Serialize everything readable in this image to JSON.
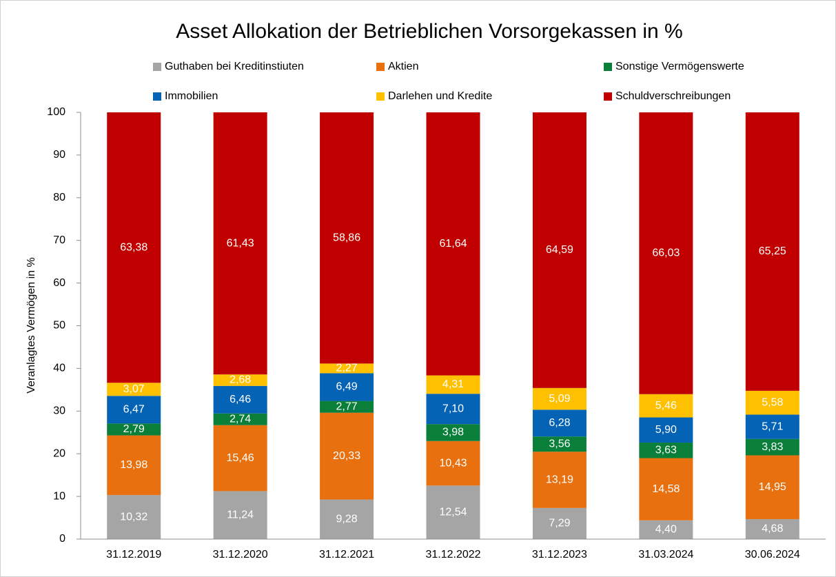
{
  "chart_data": {
    "type": "stacked_bar",
    "title": "Asset Allokation der Betrieblichen Vorsorgekassen in %",
    "y_label": "Veranlagtes Vermögen in %",
    "categories": [
      "31.12.2019",
      "31.12.2020",
      "31.12.2021",
      "31.12.2022",
      "31.12.2023",
      "31.03.2024",
      "30.06.2024"
    ],
    "ylim": [
      0,
      100
    ],
    "yticks": [
      0,
      10,
      20,
      30,
      40,
      50,
      60,
      70,
      80,
      90,
      100
    ],
    "series": [
      {
        "name": "Guthaben bei Kreditinstiuten",
        "color": "#a5a5a5",
        "values": [
          10.32,
          11.24,
          9.28,
          12.54,
          7.29,
          4.4,
          4.68
        ],
        "value_labels": [
          "10,32",
          "11,24",
          "9,28",
          "12,54",
          "7,29",
          "4,40",
          "4,68"
        ]
      },
      {
        "name": "Aktien",
        "color": "#e8700f",
        "values": [
          13.98,
          15.46,
          20.33,
          10.43,
          13.19,
          14.58,
          14.95
        ],
        "value_labels": [
          "13,98",
          "15,46",
          "20,33",
          "10,43",
          "13,19",
          "14,58",
          "14,95"
        ]
      },
      {
        "name": "Sonstige Vermögenswerte",
        "color": "#0a7f3a",
        "values": [
          2.79,
          2.74,
          2.77,
          3.98,
          3.56,
          3.63,
          3.83
        ],
        "value_labels": [
          "2,79",
          "2,74",
          "2,77",
          "3,98",
          "3,56",
          "3,63",
          "3,83"
        ]
      },
      {
        "name": "Immobilien",
        "color": "#0563b5",
        "values": [
          6.47,
          6.46,
          6.49,
          7.1,
          6.28,
          5.9,
          5.71
        ],
        "value_labels": [
          "6,47",
          "6,46",
          "6,49",
          "7,10",
          "6,28",
          "5,90",
          "5,71"
        ]
      },
      {
        "name": "Darlehen und Kredite",
        "color": "#ffc000",
        "values": [
          3.07,
          2.68,
          2.27,
          4.31,
          5.09,
          5.46,
          5.58
        ],
        "value_labels": [
          "3,07",
          "2,68",
          "2,27",
          "4,31",
          "5,09",
          "5,46",
          "5,58"
        ]
      },
      {
        "name": "Schuldverschreibungen",
        "color": "#c00000",
        "values": [
          63.38,
          61.43,
          58.86,
          61.64,
          64.59,
          66.03,
          65.25
        ],
        "value_labels": [
          "63,38",
          "61,43",
          "58,86",
          "61,64",
          "64,59",
          "66,03",
          "65,25"
        ]
      }
    ]
  }
}
